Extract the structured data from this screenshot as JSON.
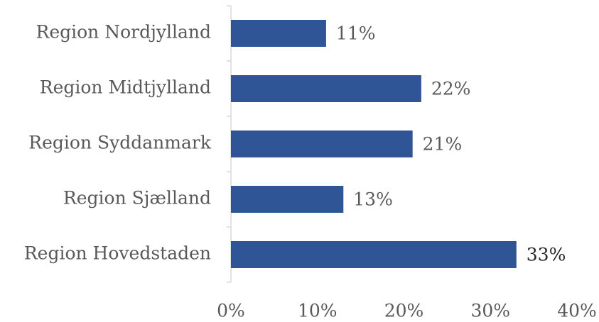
{
  "chart_data": {
    "type": "bar",
    "orientation": "horizontal",
    "categories": [
      "Region Nordjylland",
      "Region Midtjylland",
      "Region Syddanmark",
      "Region Sjælland",
      "Region Hovedstaden"
    ],
    "values": [
      11,
      22,
      21,
      13,
      33
    ],
    "value_labels": [
      "11%",
      "22%",
      "21%",
      "13%",
      "33%"
    ],
    "color": "#2f5597",
    "xlim": [
      0,
      40
    ],
    "xticks": [
      {
        "value": 0,
        "label": "0%"
      },
      {
        "value": 10,
        "label": "10%"
      },
      {
        "value": 20,
        "label": "20%"
      },
      {
        "value": 30,
        "label": "30%"
      },
      {
        "value": 40,
        "label": "40%"
      }
    ],
    "grid": false
  }
}
